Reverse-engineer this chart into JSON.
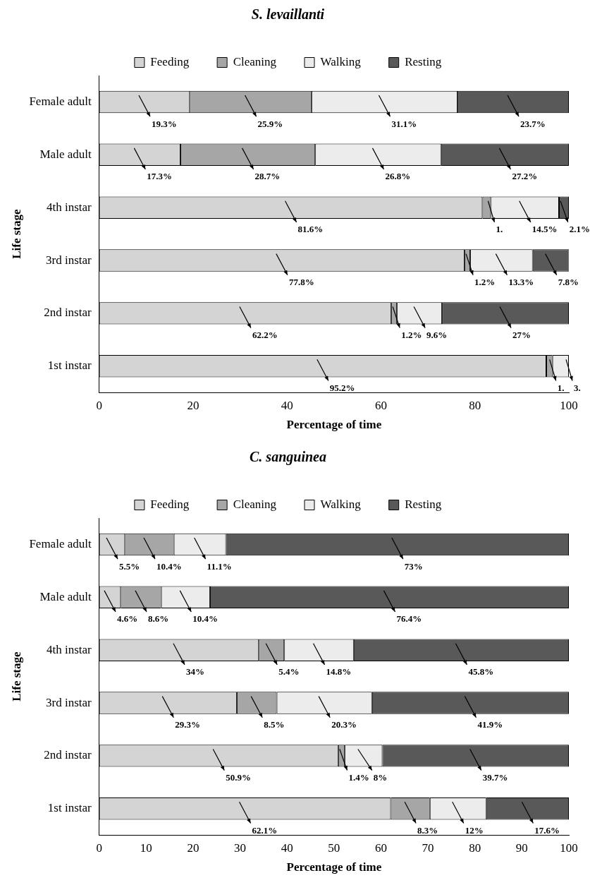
{
  "chart_data": [
    {
      "type": "bar",
      "orientation": "horizontal",
      "stacked": true,
      "title": "S. levaillanti",
      "xlabel": "Percentage of time",
      "ylabel": "Life stage",
      "categories": [
        "Female adult",
        "Male adult",
        "4th instar",
        "3rd instar",
        "2nd instar",
        "1st instar"
      ],
      "series": [
        {
          "name": "Feeding",
          "color": "#d4d4d4",
          "values": [
            19.3,
            17.3,
            81.6,
            77.8,
            62.2,
            95.2
          ],
          "value_labels": [
            "19.3%",
            "17.3%",
            "81.6%",
            "77.8%",
            "62.2%",
            "95.2%"
          ]
        },
        {
          "name": "Cleaning",
          "color": "#a6a6a6",
          "values": [
            25.9,
            28.7,
            1.8,
            1.2,
            1.2,
            1.3
          ],
          "value_labels": [
            "25.9%",
            "28.7%",
            null,
            "1.2%",
            "1.2%",
            null
          ]
        },
        {
          "name": "Walking",
          "color": "#ececec",
          "values": [
            31.1,
            26.8,
            14.5,
            13.3,
            9.6,
            3.5
          ],
          "value_labels": [
            "31.1%",
            "26.8%",
            "14.5%",
            "13.3%",
            "9.6%",
            null
          ]
        },
        {
          "name": "Resting",
          "color": "#595959",
          "values": [
            23.7,
            27.2,
            2.1,
            7.8,
            27,
            0
          ],
          "value_labels": [
            "23.7%",
            "27.2%",
            "2.1%",
            "7.8%",
            "27%",
            null
          ]
        }
      ],
      "annotations": [
        {
          "text": "1.",
          "x": 83.4,
          "y": "4th instar"
        },
        {
          "text": "1.",
          "x": 96.5,
          "y": "1st instar"
        },
        {
          "text": "3.",
          "x": 100,
          "y": "1st instar"
        }
      ],
      "xlim": [
        0,
        100
      ],
      "xticks": [
        0,
        20,
        40,
        60,
        80,
        100
      ],
      "legend": "top"
    },
    {
      "type": "bar",
      "orientation": "horizontal",
      "stacked": true,
      "title": "C. sanguinea",
      "xlabel": "Percentage of time",
      "ylabel": "Life stage",
      "categories": [
        "Female adult",
        "Male adult",
        "4th instar",
        "3rd instar",
        "2nd instar",
        "1st instar"
      ],
      "series": [
        {
          "name": "Feeding",
          "color": "#d4d4d4",
          "values": [
            5.5,
            4.6,
            34,
            29.3,
            50.9,
            62.1
          ],
          "value_labels": [
            "5.5%",
            "4.6%",
            "34%",
            "29.3%",
            "50.9%",
            "62.1%"
          ]
        },
        {
          "name": "Cleaning",
          "color": "#a6a6a6",
          "values": [
            10.4,
            8.6,
            5.4,
            8.5,
            1.4,
            8.3
          ],
          "value_labels": [
            "10.4%",
            "8.6%",
            "5.4%",
            "8.5%",
            "1.4%",
            "8.3%"
          ]
        },
        {
          "name": "Walking",
          "color": "#ececec",
          "values": [
            11.1,
            10.4,
            14.8,
            20.3,
            8,
            12
          ],
          "value_labels": [
            "11.1%",
            "10.4%",
            "14.8%",
            "20.3%",
            "8%",
            "12%"
          ]
        },
        {
          "name": "Resting",
          "color": "#595959",
          "values": [
            73,
            76.4,
            45.8,
            41.9,
            39.7,
            17.6
          ],
          "value_labels": [
            "73%",
            "76.4%",
            "45.8%",
            "41.9%",
            "39.7%",
            "17.6%"
          ]
        }
      ],
      "xlim": [
        0,
        100
      ],
      "xticks": [
        0,
        10,
        20,
        30,
        40,
        50,
        60,
        70,
        80,
        90,
        100
      ],
      "legend": "top"
    }
  ]
}
